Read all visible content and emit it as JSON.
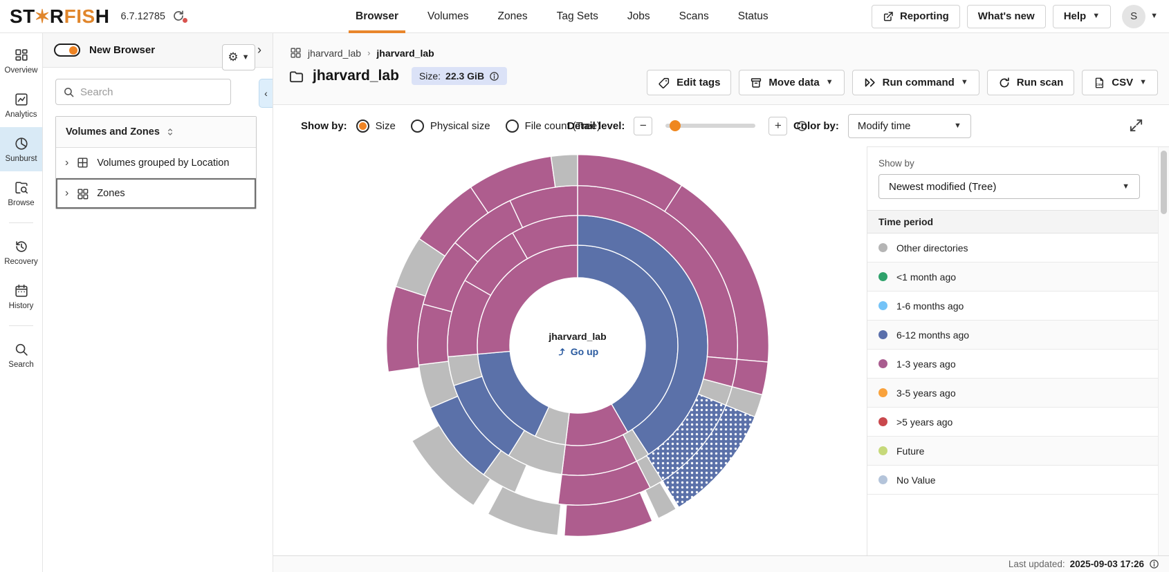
{
  "topbar": {
    "logo": {
      "pre": "ST",
      "star": "✶",
      "mid": "R",
      "accent": "FIS",
      "post": "H"
    },
    "version": "6.7.12785",
    "tabs": [
      {
        "label": "Browser",
        "active": true
      },
      {
        "label": "Volumes"
      },
      {
        "label": "Zones"
      },
      {
        "label": "Tag Sets"
      },
      {
        "label": "Jobs"
      },
      {
        "label": "Scans"
      },
      {
        "label": "Status"
      }
    ],
    "reporting_label": "Reporting",
    "whats_new_label": "What's new",
    "help_label": "Help",
    "avatar_initial": "S"
  },
  "rail": {
    "items": [
      {
        "label": "Overview",
        "icon": "overview"
      },
      {
        "label": "Analytics",
        "icon": "analytics"
      },
      {
        "label": "Sunburst",
        "icon": "sunburst",
        "active": true
      },
      {
        "label": "Browse",
        "icon": "browse",
        "divider_after": true
      },
      {
        "label": "Recovery",
        "icon": "recovery"
      },
      {
        "label": "History",
        "icon": "history",
        "divider_after": true
      },
      {
        "label": "Search",
        "icon": "search"
      }
    ]
  },
  "sidebar": {
    "new_browser_label": "New Browser",
    "search_placeholder": "Search",
    "tree_header": "Volumes and Zones",
    "tree_items": [
      {
        "label": "Volumes grouped by Location",
        "icon": "volgrid"
      },
      {
        "label": "Zones",
        "icon": "zonegrid",
        "selected": true
      }
    ]
  },
  "header": {
    "breadcrumb": [
      {
        "label": "jharvard_lab"
      },
      {
        "label": "jharvard_lab",
        "current": true
      }
    ],
    "title": "jharvard_lab",
    "size_label": "Size:",
    "size_value": "22.3 GiB",
    "actions": [
      {
        "label": "Edit tags",
        "icon": "tag"
      },
      {
        "label": "Move data",
        "icon": "box",
        "caret": true
      },
      {
        "label": "Run command",
        "icon": "runcmd",
        "caret": true
      },
      {
        "label": "Run scan",
        "icon": "refresh"
      },
      {
        "label": "CSV",
        "icon": "csv",
        "caret": true
      }
    ]
  },
  "controls": {
    "show_by_label": "Show by:",
    "options": [
      {
        "label": "Size",
        "selected": true
      },
      {
        "label": "Physical size"
      },
      {
        "label": "File count (Tree)"
      }
    ],
    "detail_label": "Detail level:",
    "slider_position": 0.08,
    "color_by_label": "Color by:",
    "color_by_value": "Modify time"
  },
  "legend": {
    "show_by_label": "Show by",
    "dropdown_value": "Newest modified (Tree)",
    "header": "Time period",
    "items": [
      {
        "label": "Other directories",
        "color": "#b5b5b5"
      },
      {
        "label": "<1 month ago",
        "color": "#2fa26b"
      },
      {
        "label": "1-6 months ago",
        "color": "#74c3f7"
      },
      {
        "label": "6-12 months ago",
        "color": "#5a6fab"
      },
      {
        "label": "1-3 years ago",
        "color": "#a95c8f"
      },
      {
        "label": "3-5 years ago",
        "color": "#f9a23c"
      },
      {
        "label": ">5 years ago",
        "color": "#c9484d"
      },
      {
        "label": "Future",
        "color": "#c6d97a"
      },
      {
        "label": "No Value",
        "color": "#b4c4da"
      }
    ]
  },
  "statusbar": {
    "label": "Last updated:",
    "value": "2025-09-03 17:26"
  },
  "chart_data": {
    "type": "sunburst",
    "center": {
      "label": "jharvard_lab",
      "action": "Go up"
    },
    "rings_radii": [
      100,
      148,
      192,
      236,
      282
    ],
    "palette": {
      "mauve": "#ae5d8e",
      "blue": "#5b71a9",
      "gray": "#bcbcbc",
      "dotted": "blue-with-white-dots"
    },
    "segments": [
      {
        "ring": 1,
        "start": 0,
        "end": 150,
        "color": "blue"
      },
      {
        "ring": 1,
        "start": 150,
        "end": 187,
        "color": "mauve"
      },
      {
        "ring": 1,
        "start": 187,
        "end": 205,
        "color": "gray"
      },
      {
        "ring": 1,
        "start": 205,
        "end": 265,
        "color": "blue"
      },
      {
        "ring": 1,
        "start": 265,
        "end": 360,
        "color": "mauve"
      },
      {
        "ring": 2,
        "start": 0,
        "end": 147,
        "color": "blue"
      },
      {
        "ring": 2,
        "start": 147,
        "end": 153,
        "color": "gray"
      },
      {
        "ring": 2,
        "start": 153,
        "end": 187,
        "color": "mauve"
      },
      {
        "ring": 2,
        "start": 187,
        "end": 212,
        "color": "gray"
      },
      {
        "ring": 2,
        "start": 212,
        "end": 252,
        "color": "blue"
      },
      {
        "ring": 2,
        "start": 252,
        "end": 265,
        "color": "gray"
      },
      {
        "ring": 2,
        "start": 265,
        "end": 300,
        "color": "mauve"
      },
      {
        "ring": 2,
        "start": 300,
        "end": 330,
        "color": "mauve"
      },
      {
        "ring": 2,
        "start": 330,
        "end": 360,
        "color": "mauve"
      },
      {
        "ring": 3,
        "start": 0,
        "end": 95,
        "color": "mauve"
      },
      {
        "ring": 3,
        "start": 95,
        "end": 105,
        "color": "mauve"
      },
      {
        "ring": 3,
        "start": 105,
        "end": 112,
        "color": "gray"
      },
      {
        "ring": 3,
        "start": 112,
        "end": 148,
        "color": "dotted"
      },
      {
        "ring": 3,
        "start": 148,
        "end": 153,
        "color": "gray"
      },
      {
        "ring": 3,
        "start": 153,
        "end": 187,
        "color": "mauve"
      },
      {
        "ring": 3,
        "start": 203,
        "end": 216,
        "color": "gray"
      },
      {
        "ring": 3,
        "start": 216,
        "end": 247,
        "color": "blue"
      },
      {
        "ring": 3,
        "start": 247,
        "end": 263,
        "color": "gray"
      },
      {
        "ring": 3,
        "start": 263,
        "end": 285,
        "color": "mauve"
      },
      {
        "ring": 3,
        "start": 285,
        "end": 310,
        "color": "mauve"
      },
      {
        "ring": 3,
        "start": 310,
        "end": 335,
        "color": "mauve"
      },
      {
        "ring": 3,
        "start": 335,
        "end": 360,
        "color": "mauve"
      },
      {
        "ring": 4,
        "start": 0,
        "end": 33,
        "color": "mauve"
      },
      {
        "ring": 4,
        "start": 33,
        "end": 95,
        "color": "mauve"
      },
      {
        "ring": 4,
        "start": 95,
        "end": 105,
        "color": "mauve"
      },
      {
        "ring": 4,
        "start": 105,
        "end": 112,
        "color": "gray"
      },
      {
        "ring": 4,
        "start": 112,
        "end": 148,
        "color": "dotted"
      },
      {
        "ring": 4,
        "start": 149,
        "end": 155,
        "color": "gray"
      },
      {
        "ring": 4,
        "start": 157,
        "end": 184,
        "color": "mauve"
      },
      {
        "ring": 4,
        "start": 186,
        "end": 208,
        "color": "gray"
      },
      {
        "ring": 4,
        "start": 213,
        "end": 240,
        "color": "gray"
      },
      {
        "ring": 4,
        "start": 262,
        "end": 288,
        "color": "mauve"
      },
      {
        "ring": 4,
        "start": 288,
        "end": 304,
        "color": "gray"
      },
      {
        "ring": 4,
        "start": 304,
        "end": 326,
        "color": "mauve"
      },
      {
        "ring": 4,
        "start": 326,
        "end": 352,
        "color": "mauve"
      },
      {
        "ring": 4,
        "start": 352,
        "end": 360,
        "color": "gray"
      }
    ]
  }
}
